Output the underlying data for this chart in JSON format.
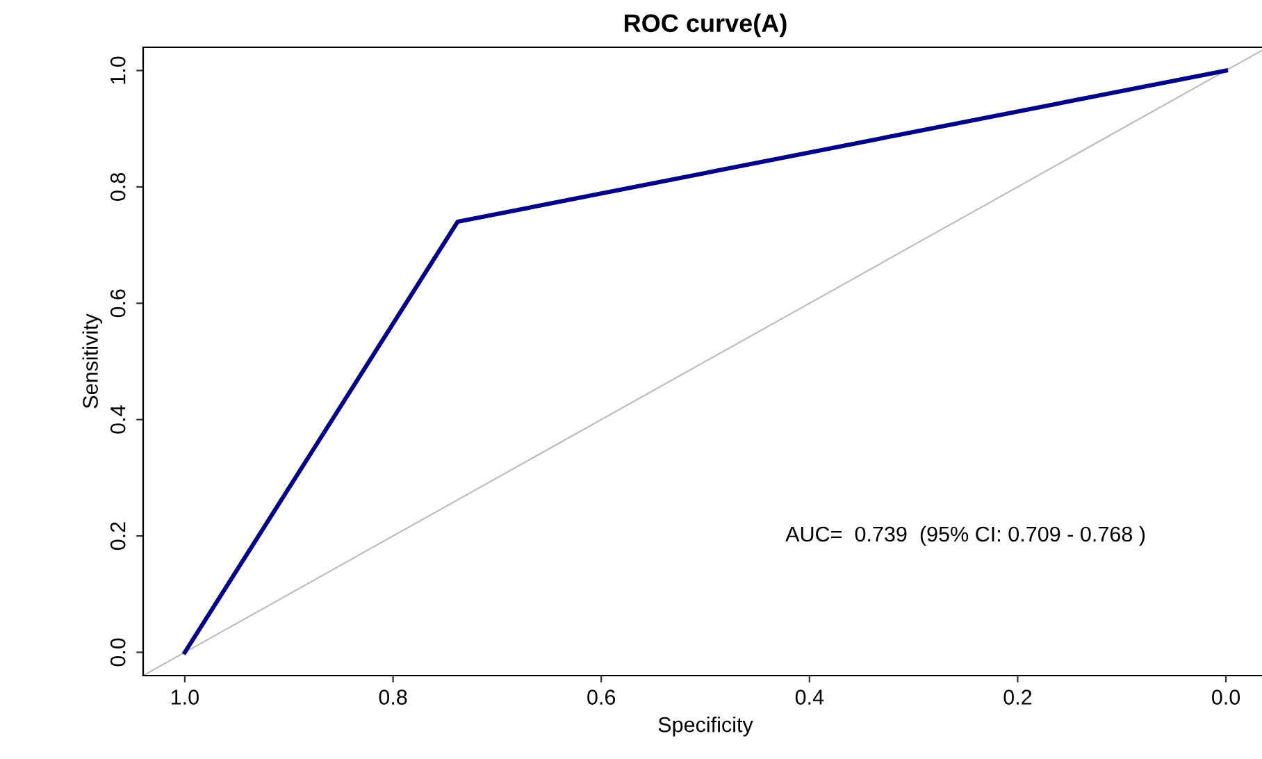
{
  "chart_data": {
    "type": "line",
    "title": "ROC curve(A)",
    "xlabel": "Specificity",
    "ylabel": "Sensitivity",
    "series": [
      {
        "x": [
          1.04,
          -0.04
        ],
        "values": [
          -0.04,
          1.04
        ],
        "color": "#bebebe"
      },
      {
        "x": [
          1.0,
          0.738,
          0.0
        ],
        "values": [
          0.0,
          0.74,
          1.0
        ],
        "color": "#00008b"
      }
    ],
    "xlim": [
      1.04,
      -0.04
    ],
    "ylim": [
      -0.04,
      1.04
    ],
    "xticks": [
      {
        "value": 1,
        "label": "1.0"
      },
      {
        "value": 0.8,
        "label": "0.8"
      },
      {
        "value": 0.6,
        "label": "0.6"
      },
      {
        "value": 0.4,
        "label": "0.4"
      },
      {
        "value": 0.2,
        "label": "0.2"
      },
      {
        "value": 0,
        "label": "0.0"
      }
    ],
    "yticks": [
      {
        "value": 0,
        "label": "0.0"
      },
      {
        "value": 0.2,
        "label": "0.2"
      },
      {
        "value": 0.4,
        "label": "0.4"
      },
      {
        "value": 0.6,
        "label": "0.6"
      },
      {
        "value": 0.8,
        "label": "0.8"
      },
      {
        "value": 1,
        "label": "1.0"
      }
    ],
    "grid": false,
    "legend": false,
    "annotations": [
      "AUC=  0.739  (95% CI: 0.709 - 0.768 )"
    ]
  }
}
